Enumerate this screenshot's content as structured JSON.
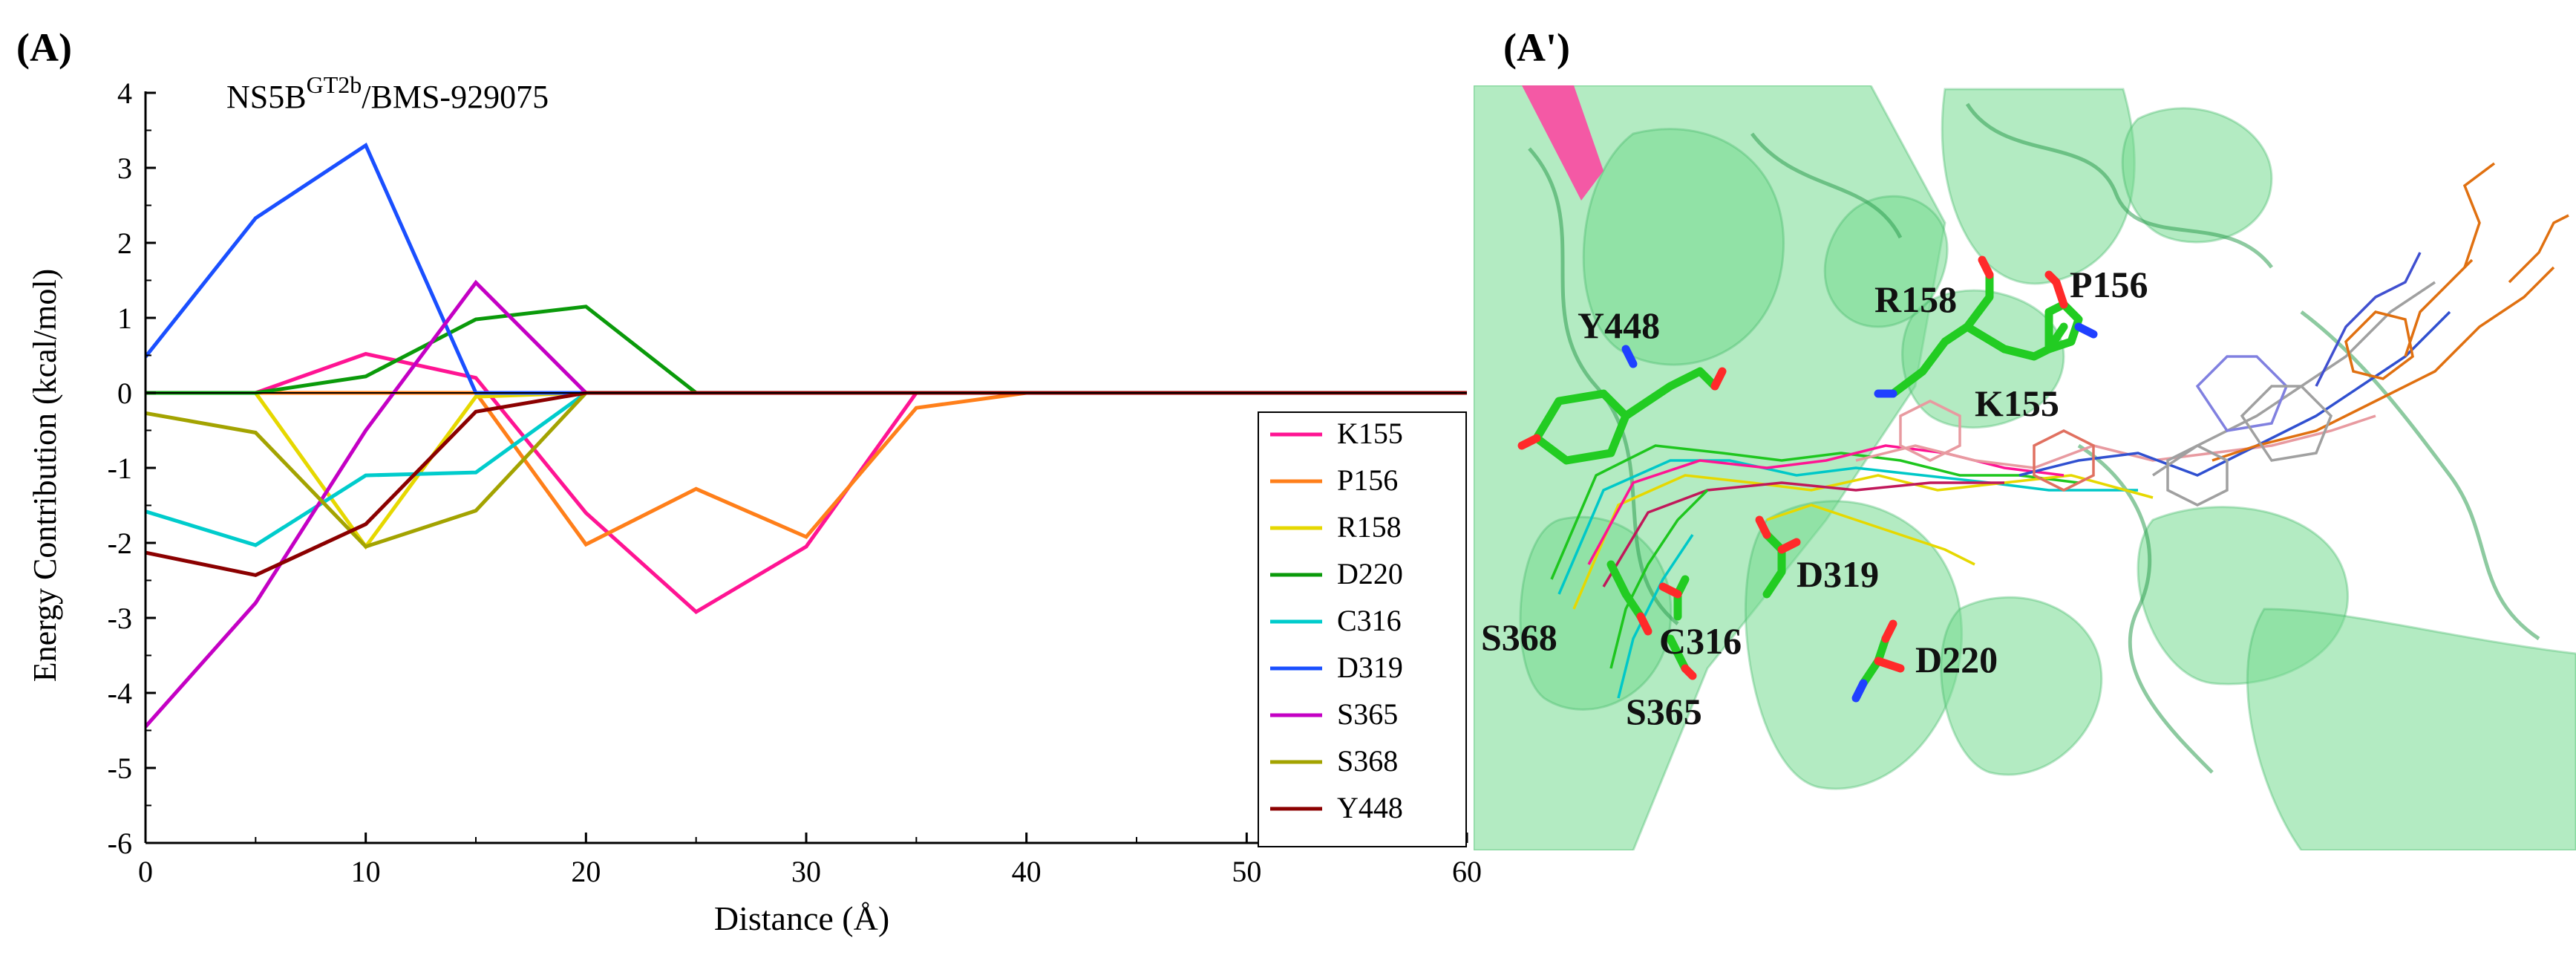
{
  "panels": {
    "left_label": "(A)",
    "right_label": "(A')"
  },
  "chart_data": {
    "type": "line",
    "title_main": "NS5B",
    "title_sup": "GT2b",
    "title_suffix": "/BMS-929075",
    "xlabel": "Distance (Å)",
    "ylabel": "Energy Contribution (kcal/mol)",
    "xlim": [
      0,
      60
    ],
    "ylim": [
      -6,
      4
    ],
    "xticks": [
      0,
      10,
      20,
      30,
      40,
      50,
      60
    ],
    "yticks": [
      4,
      3,
      2,
      1,
      0,
      -1,
      -2,
      -3,
      -4,
      -5,
      -6
    ],
    "grid": false,
    "legend_position": "right",
    "series": [
      {
        "name": "K155",
        "color": "#ff1493",
        "x": [
          0,
          5,
          10,
          15,
          20,
          25,
          30,
          35,
          40,
          45,
          50,
          55,
          60
        ],
        "y": [
          0,
          0,
          0.52,
          0.2,
          -1.6,
          -2.92,
          -2.05,
          0,
          0,
          0,
          0,
          0,
          0
        ]
      },
      {
        "name": "P156",
        "color": "#ff7f1a",
        "x": [
          0,
          5,
          10,
          15,
          20,
          25,
          30,
          35,
          40,
          45,
          50,
          55,
          60
        ],
        "y": [
          0,
          0,
          0,
          0,
          -2.02,
          -1.28,
          -1.92,
          -0.2,
          0,
          0,
          0,
          0,
          0
        ]
      },
      {
        "name": "R158",
        "color": "#e6d800",
        "x": [
          0,
          5,
          10,
          15,
          20,
          25,
          30,
          35,
          40,
          45,
          50,
          55,
          60
        ],
        "y": [
          0,
          0,
          -2.05,
          -0.05,
          0,
          0,
          0,
          0,
          0,
          0,
          0,
          0,
          0
        ]
      },
      {
        "name": "D220",
        "color": "#0a9a0a",
        "x": [
          0,
          5,
          10,
          15,
          20,
          25,
          30,
          35,
          40,
          45,
          50,
          55,
          60
        ],
        "y": [
          0,
          0,
          0.22,
          0.98,
          1.15,
          0,
          0,
          0,
          0,
          0,
          0,
          0,
          0
        ]
      },
      {
        "name": "C316",
        "color": "#00cccc",
        "x": [
          0,
          5,
          10,
          15,
          20,
          25,
          30,
          35,
          40,
          45,
          50,
          55,
          60
        ],
        "y": [
          -1.58,
          -2.03,
          -1.1,
          -1.06,
          0,
          0,
          0,
          0,
          0,
          0,
          0,
          0,
          0
        ]
      },
      {
        "name": "D319",
        "color": "#1a4fff",
        "x": [
          0,
          5,
          10,
          15,
          20,
          25,
          30,
          35,
          40,
          45,
          50,
          55,
          60
        ],
        "y": [
          0.48,
          2.33,
          3.3,
          0,
          0,
          0,
          0,
          0,
          0,
          0,
          0,
          0,
          0
        ]
      },
      {
        "name": "S365",
        "color": "#c400c4",
        "x": [
          0,
          5,
          10,
          15,
          20,
          25,
          30,
          35,
          40,
          45,
          50,
          55,
          60
        ],
        "y": [
          -4.45,
          -2.8,
          -0.5,
          1.47,
          0,
          0,
          0,
          0,
          0,
          0,
          0,
          0,
          0
        ]
      },
      {
        "name": "S368",
        "color": "#a3a300",
        "x": [
          0,
          5,
          10,
          15,
          20,
          25,
          30,
          35,
          40,
          45,
          50,
          55,
          60
        ],
        "y": [
          -0.27,
          -0.53,
          -2.05,
          -1.57,
          0,
          0,
          0,
          0,
          0,
          0,
          0,
          0,
          0
        ]
      },
      {
        "name": "Y448",
        "color": "#8b0000",
        "x": [
          0,
          5,
          10,
          15,
          20,
          25,
          30,
          35,
          40,
          45,
          50,
          55,
          60
        ],
        "y": [
          -2.13,
          -2.43,
          -1.75,
          -0.25,
          0,
          0,
          0,
          0,
          0,
          0,
          0,
          0,
          0
        ]
      }
    ]
  },
  "structure": {
    "residue_labels": [
      "Y448",
      "R158",
      "P156",
      "K155",
      "D319",
      "S368",
      "C316",
      "D220",
      "S365"
    ],
    "colors": {
      "protein": "#6fdb8a",
      "background": "#d8f5df",
      "residue_carbon": "#22cc22",
      "oxygen": "#ff2a2a",
      "nitrogen": "#2040ff",
      "helix_pink": "#ff3fa0"
    }
  }
}
